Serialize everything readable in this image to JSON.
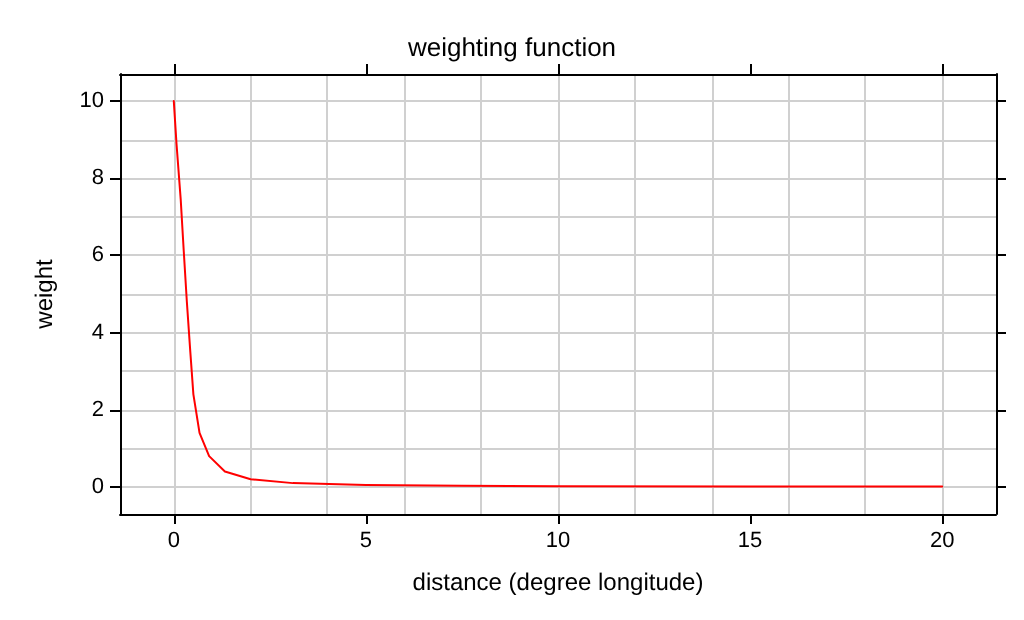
{
  "chart_data": {
    "type": "line",
    "title": "weighting function",
    "xlabel": "distance (degree longitude)",
    "ylabel": "weight",
    "x": [
      0,
      0.07,
      0.18,
      0.26,
      0.34,
      0.43,
      0.51,
      0.67,
      0.92,
      1.33,
      2,
      3.1,
      5,
      7.5,
      10,
      15,
      20
    ],
    "series": [
      {
        "color": "#ff0000",
        "values": [
          10,
          8.9,
          7.45,
          6.1,
          4.8,
          3.5,
          2.4,
          1.4,
          0.8,
          0.4,
          0.2,
          0.1,
          0.05,
          0.03,
          0.02,
          0.01,
          0.01
        ]
      }
    ],
    "xlim": [
      -1.4,
      21.4
    ],
    "ylim": [
      -0.7,
      10.7
    ],
    "xticks": [
      0,
      5,
      10,
      15,
      20
    ],
    "yticks": [
      0,
      2,
      4,
      6,
      8,
      10
    ],
    "grid": true,
    "marker": "none",
    "line_style": "solid"
  }
}
